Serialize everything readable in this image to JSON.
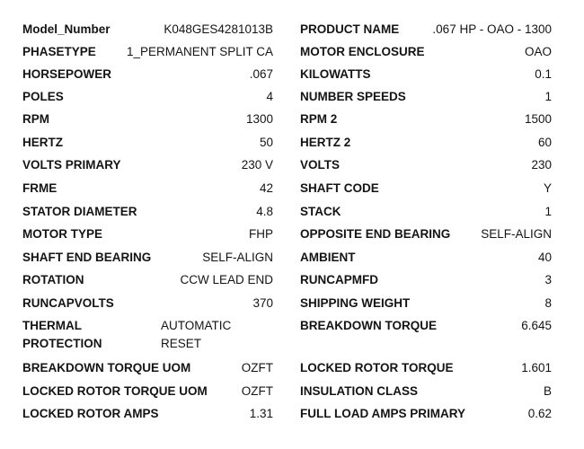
{
  "left": [
    {
      "label": "Model_Number",
      "value": "K048GES4281013B"
    },
    {
      "label": "PHASETYPE",
      "value": "1_PERMANENT SPLIT CA"
    },
    {
      "label": "HORSEPOWER",
      "value": ".067"
    },
    {
      "label": "POLES",
      "value": "4"
    },
    {
      "label": "RPM",
      "value": "1300"
    },
    {
      "label": "HERTZ",
      "value": "50"
    },
    {
      "label": "VOLTS PRIMARY",
      "value": "230 V"
    },
    {
      "label": "FRME",
      "value": "42"
    },
    {
      "label": "STATOR DIAMETER",
      "value": "4.8"
    },
    {
      "label": "MOTOR TYPE",
      "value": "FHP"
    },
    {
      "label": "SHAFT END BEARING",
      "value": "SELF-ALIGN"
    },
    {
      "label": "ROTATION",
      "value": "CCW LEAD END"
    },
    {
      "label": "RUNCAPVOLTS",
      "value": "370"
    },
    {
      "label": "THERMAL PROTECTION",
      "value": "AUTOMATIC RESET"
    },
    {
      "label": "BREAKDOWN TORQUE UOM",
      "value": "OZFT"
    },
    {
      "label": "LOCKED ROTOR TORQUE UOM",
      "value": "OZFT"
    },
    {
      "label": "LOCKED ROTOR AMPS",
      "value": "1.31"
    }
  ],
  "right": [
    {
      "label": "PRODUCT NAME",
      "value": ".067 HP - OAO - 1300"
    },
    {
      "label": "MOTOR ENCLOSURE",
      "value": "OAO"
    },
    {
      "label": "KILOWATTS",
      "value": "0.1"
    },
    {
      "label": "NUMBER SPEEDS",
      "value": "1"
    },
    {
      "label": "RPM 2",
      "value": "1500"
    },
    {
      "label": "HERTZ 2",
      "value": "60"
    },
    {
      "label": "VOLTS",
      "value": "230"
    },
    {
      "label": "SHAFT CODE",
      "value": "Y"
    },
    {
      "label": "STACK",
      "value": "1"
    },
    {
      "label": "OPPOSITE END BEARING",
      "value": "SELF-ALIGN"
    },
    {
      "label": "AMBIENT",
      "value": "40"
    },
    {
      "label": "RUNCAPMFD",
      "value": "3"
    },
    {
      "label": "SHIPPING WEIGHT",
      "value": "8"
    },
    {
      "label": "BREAKDOWN TORQUE",
      "value": "6.645"
    },
    {
      "label": "LOCKED ROTOR TORQUE",
      "value": "1.601"
    },
    {
      "label": "INSULATION CLASS",
      "value": "B"
    },
    {
      "label": "FULL LOAD AMPS PRIMARY",
      "value": "0.62"
    }
  ]
}
